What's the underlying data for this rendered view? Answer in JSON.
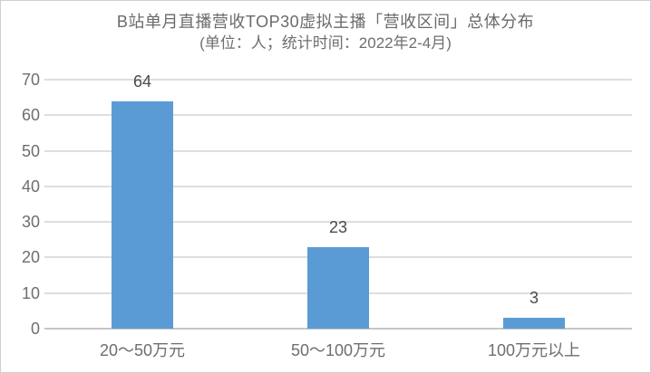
{
  "chart_data": {
    "type": "bar",
    "title": "B站单月直播营收TOP30虚拟主播「营收区间」总体分布",
    "subtitle": "(单位：人；统计时间：2022年2-4月)",
    "categories": [
      "20～50万元",
      "50～100万元",
      "100万元以上"
    ],
    "values": [
      64,
      23,
      3
    ],
    "xlabel": "",
    "ylabel": "",
    "ylim": [
      0,
      70
    ],
    "yticks": [
      0,
      10,
      20,
      30,
      40,
      50,
      60,
      70
    ],
    "grid": true,
    "legend": "none",
    "data_labels": true
  },
  "colors": {
    "bar": "#5B9BD5",
    "gridline": "#DEDEDE",
    "axis_line": "#C6C6C6",
    "title_text": "#6A6A6A",
    "tick_text": "#6E6E6E",
    "data_label_text": "#4A4A4A",
    "frame_border": "#CFCFCF",
    "background": "#FFFFFF"
  }
}
